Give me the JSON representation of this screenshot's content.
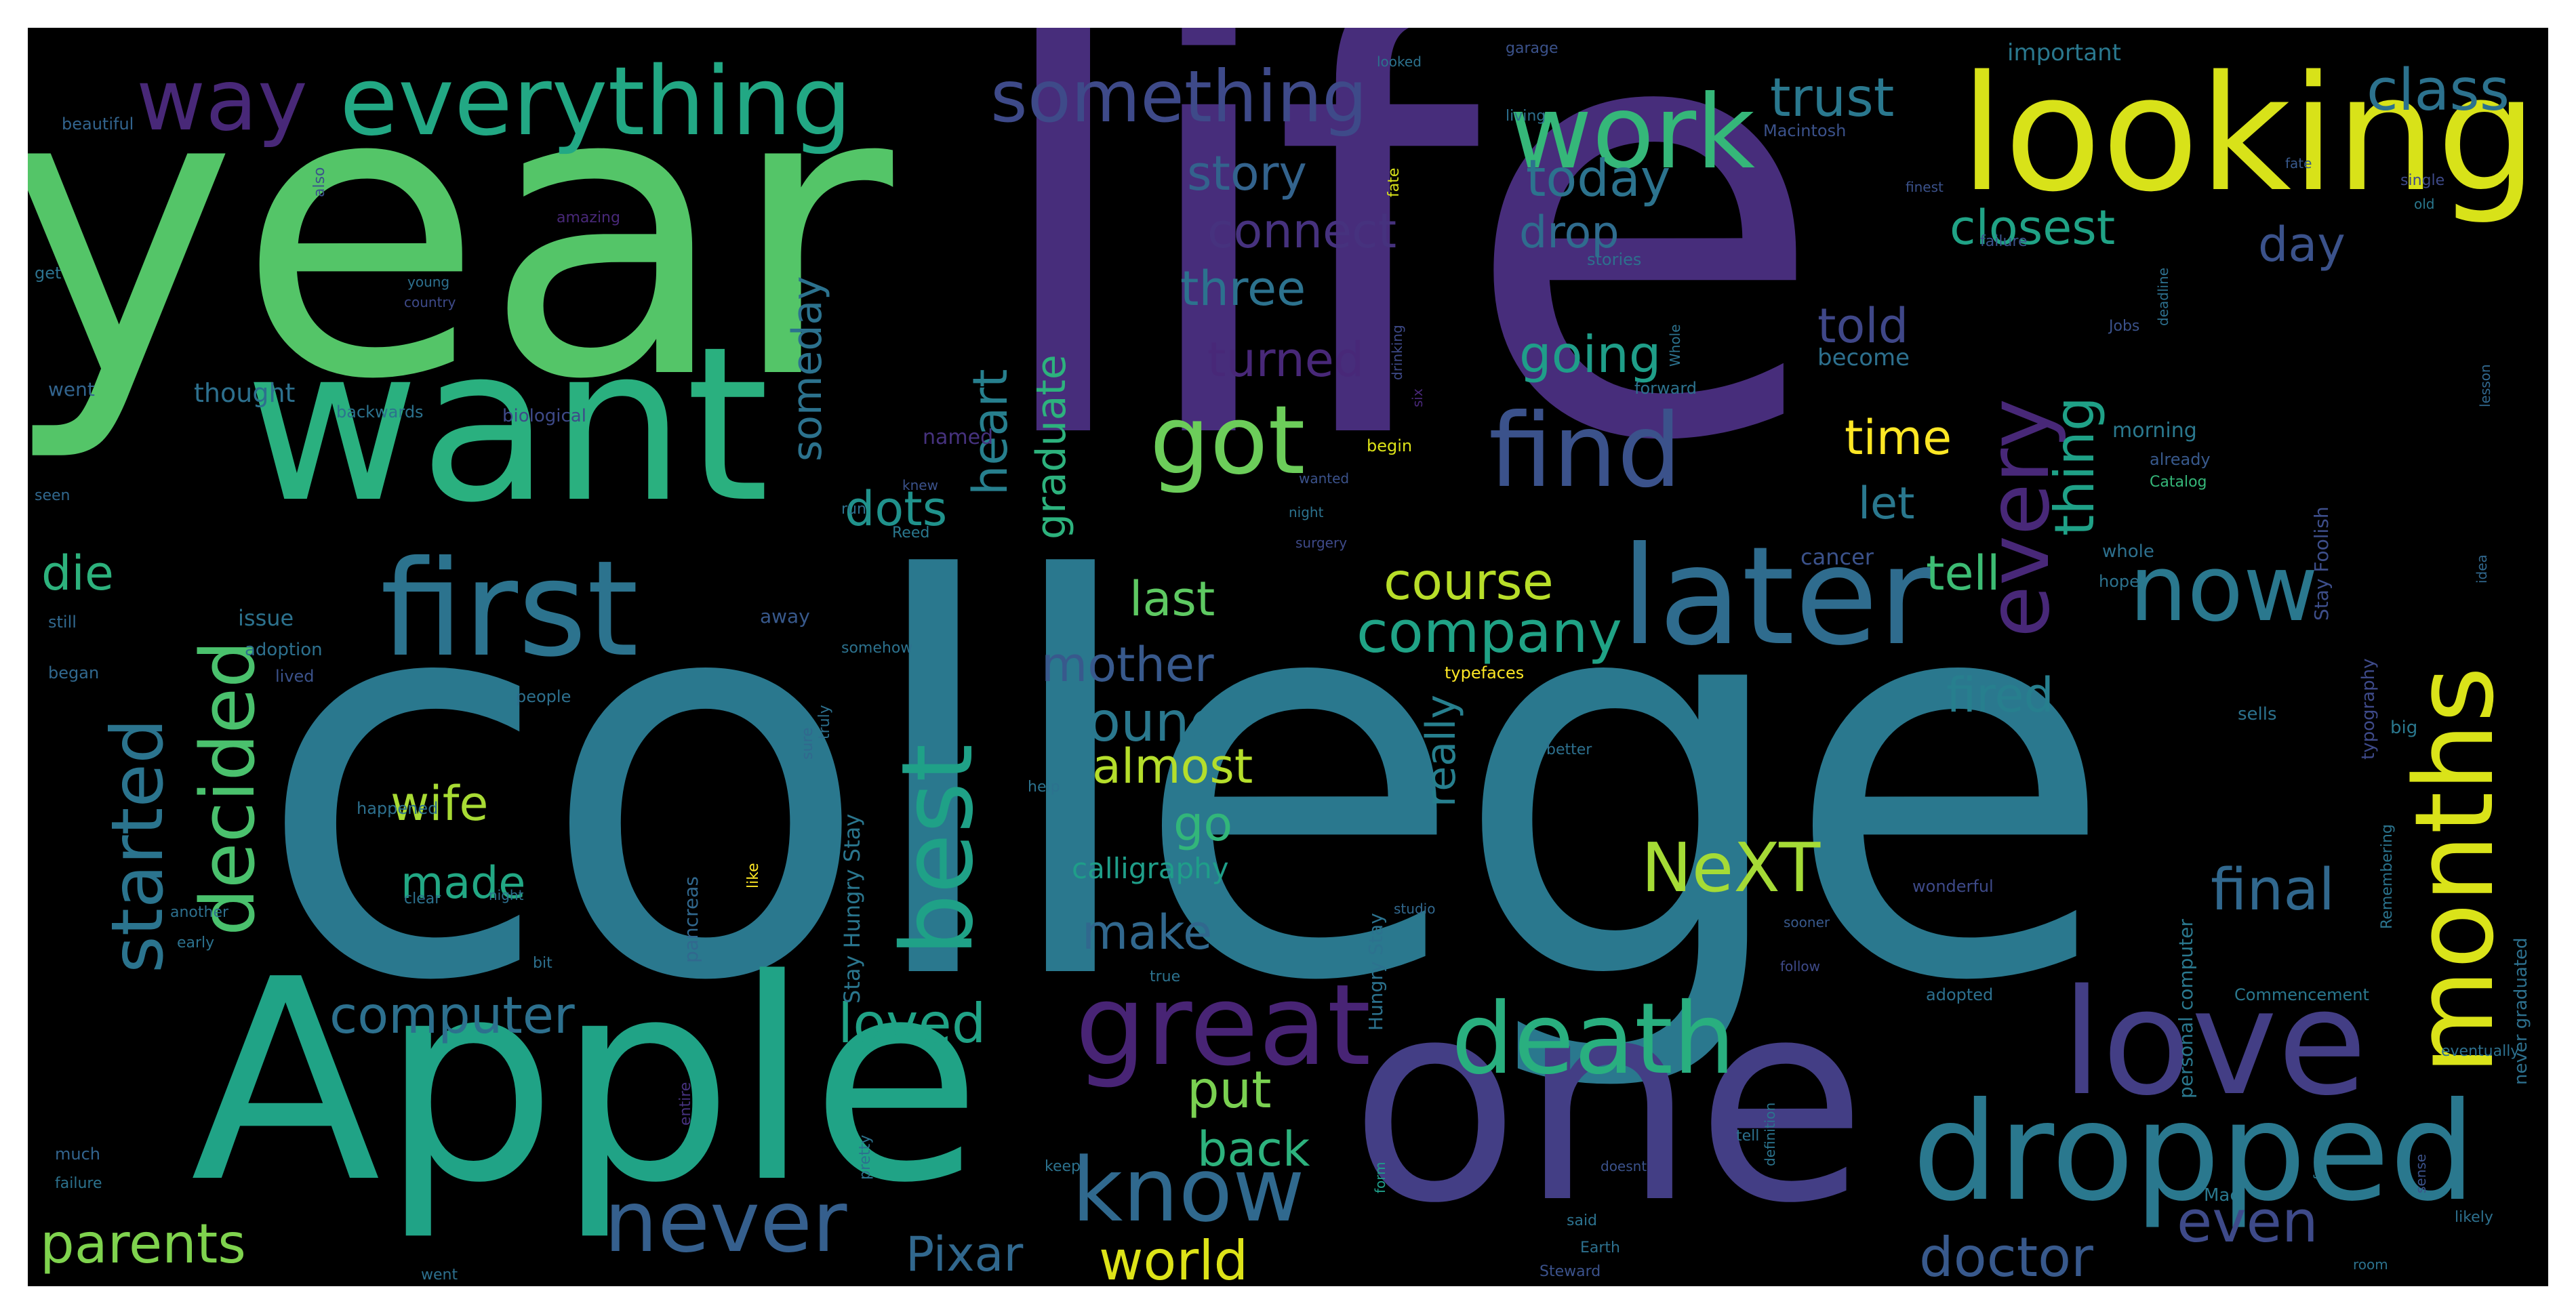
{
  "wordcloud": {
    "background": "#000000",
    "colormap": [
      "#440154",
      "#46327e",
      "#365c8d",
      "#277f8e",
      "#1fa187",
      "#4ac16d",
      "#a0da39",
      "#fde725"
    ],
    "words": {
      "life": "life",
      "college": "college",
      "year": "year",
      "want": "want",
      "apple": "Apple",
      "one": "one",
      "looking": "looking",
      "months": "months",
      "first": "first",
      "later": "later",
      "dropped": "dropped",
      "love": "love",
      "everything": "everything",
      "work": "work",
      "way": "way",
      "something": "something",
      "trust": "trust",
      "class": "class",
      "got": "got",
      "find": "find",
      "now": "now",
      "best": "best",
      "great": "great",
      "death": "death",
      "know": "know",
      "never": "never",
      "decided": "decided",
      "started": "started",
      "story": "story",
      "today": "today",
      "drop": "drop",
      "connect": "connect",
      "closest": "closest",
      "day": "day",
      "three": "three",
      "turned": "turned",
      "going": "going",
      "told": "told",
      "every": "every",
      "thing": "thing",
      "time": "time",
      "let": "let",
      "tell": "tell",
      "company": "company",
      "course": "course",
      "last": "last",
      "mother": "mother",
      "found": "found",
      "almost": "almost",
      "fired": "fired",
      "dots": "dots",
      "die": "die",
      "wife": "wife",
      "made": "made",
      "go": "go",
      "make": "make",
      "next": "NeXT",
      "final": "final",
      "computer": "computer",
      "loved": "loved",
      "put": "put",
      "back": "back",
      "parents": "parents",
      "pixar": "Pixar",
      "world": "world",
      "doctor": "doctor",
      "even": "even",
      "heart": "heart",
      "graduate": "graduate",
      "someday": "someday",
      "really": "really",
      "calligraphy": "calligraphy",
      "cancer": "cancer",
      "important": "important",
      "stay_foolish": "Stay Foolish",
      "typography": "typography",
      "personal_computer": "personal computer",
      "stay_hungry": "Stay Hungry Stay",
      "hungry_stay": "Hungry Stay",
      "never_graduated": "never graduated",
      "remembering": "Remembering",
      "adopted": "adopted",
      "commencement": "Commencement",
      "beautiful": "beautiful",
      "macintosh": "Macintosh",
      "thought": "thought",
      "biological": "biological",
      "backwards": "backwards",
      "named": "named",
      "morning": "morning",
      "already": "already",
      "catalog": "Catalog",
      "become": "become",
      "forward": "forward",
      "issue": "issue",
      "adoption": "adoption",
      "away": "away",
      "somehow": "somehow",
      "typefaces": "typefaces",
      "people": "people",
      "happened": "happened",
      "pancreas": "pancreas",
      "still": "still",
      "began": "began",
      "lived": "lived",
      "wonderful": "wonderful",
      "better": "better",
      "sells": "sells",
      "another": "another",
      "early": "early",
      "whole": "whole",
      "hope": "hope",
      "big": "big",
      "single": "single",
      "failure": "failure",
      "finest": "finest",
      "stories": "stories",
      "jobs": "Jobs",
      "went": "went",
      "also": "also",
      "night": "night",
      "begin": "begin",
      "surgery": "surgery",
      "garage": "garage",
      "looked": "looked",
      "living": "living",
      "fate": "fate",
      "old": "old",
      "get": "get",
      "young": "young",
      "country": "country",
      "amazing": "amazing",
      "knew": "knew",
      "reed": "Reed",
      "run": "run",
      "wanted": "wanted",
      "six": "six",
      "bit": "bit",
      "much": "much",
      "sure": "sure",
      "truly": "truly",
      "like": "like",
      "true": "true",
      "form": "form",
      "follow": "follow",
      "pretty": "pretty",
      "keep": "keep",
      "tell_small": "tell",
      "mac": "Mac",
      "likely": "likely",
      "sooner": "sooner",
      "steward": "Steward",
      "earth": "Earth",
      "doesnt": "doesnt",
      "said": "said",
      "room": "room",
      "entire": "entire",
      "seen": "seen",
      "lesson": "lesson",
      "idea": "idea",
      "sense": "sense",
      "studio": "studio",
      "fun": "fun",
      "help": "help",
      "clear": "clear",
      "eventually": "eventually",
      "wholeearth": "Whole",
      "definition": "definition",
      "deadline": "deadline",
      "drinking": "drinking"
    }
  }
}
